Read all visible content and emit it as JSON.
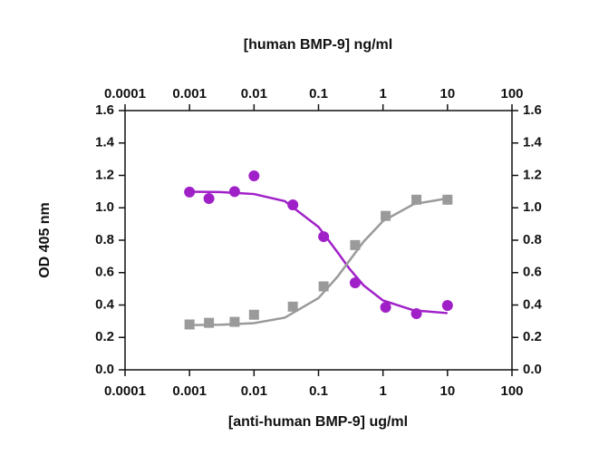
{
  "chart_data": {
    "type": "scatter",
    "x2label": "[human BMP-9] ng/ml",
    "xlabel": "[anti-human BMP-9] ug/ml",
    "ylabel": "OD 405 nm",
    "xscale": "log",
    "xlim": [
      0.0001,
      100
    ],
    "xticks": [
      0.0001,
      0.001,
      0.01,
      0.1,
      1,
      10,
      100
    ],
    "x2lim": [
      0.0001,
      100
    ],
    "x2ticks": [
      0.0001,
      0.001,
      0.01,
      0.1,
      1,
      10,
      100
    ],
    "ylim": [
      0,
      1.6
    ],
    "yticks": [
      {
        "value": 0,
        "label": "0.0"
      },
      0.2,
      0.4,
      0.6,
      0.8,
      {
        "value": 1,
        "label": "1.0"
      },
      1.2,
      1.4,
      1.6
    ],
    "y2lim": [
      0,
      1.6
    ],
    "y2ticks": [
      {
        "value": 0,
        "label": "0.0"
      },
      0.2,
      0.4,
      0.6,
      0.8,
      {
        "value": 1,
        "label": "1.0"
      },
      1.2,
      1.4,
      1.6
    ],
    "series": [
      {
        "color": "#a020c8",
        "marker": "circle",
        "x": [
          0.001,
          0.002,
          0.005,
          0.01,
          0.04,
          0.12,
          0.37,
          1.1,
          3.3,
          10
        ],
        "values": [
          1.097,
          1.057,
          1.1,
          1.197,
          1.018,
          0.822,
          0.537,
          0.386,
          0.347,
          0.397
        ],
        "fit": {
          "x": [
            0.001,
            0.003,
            0.01,
            0.03,
            0.1,
            0.2,
            0.3,
            0.5,
            1,
            3,
            10
          ],
          "values": [
            1.099,
            1.097,
            1.085,
            1.041,
            0.882,
            0.7225,
            0.625,
            0.521,
            0.428,
            0.367,
            0.35
          ]
        }
      },
      {
        "color": "#9a9a9a",
        "marker": "square",
        "x": [
          0.001,
          0.002,
          0.005,
          0.01,
          0.04,
          0.12,
          0.37,
          1.1,
          3.3,
          10
        ],
        "values": [
          0.28,
          0.29,
          0.296,
          0.34,
          0.39,
          0.515,
          0.77,
          0.95,
          1.05,
          1.05
        ],
        "fit": {
          "x": [
            0.001,
            0.003,
            0.01,
            0.03,
            0.1,
            0.2,
            0.3,
            0.5,
            1,
            3,
            10
          ],
          "values": [
            0.276,
            0.278,
            0.288,
            0.322,
            0.443,
            0.578,
            0.6725,
            0.791,
            0.918,
            1.023,
            1.058
          ]
        }
      }
    ]
  }
}
